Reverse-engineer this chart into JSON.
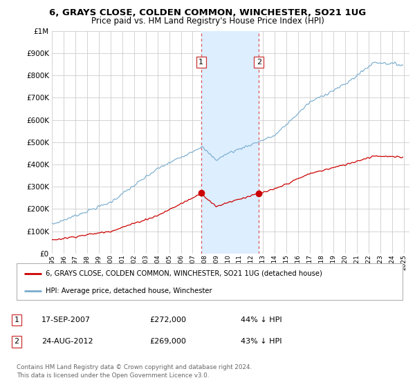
{
  "title": "6, GRAYS CLOSE, COLDEN COMMON, WINCHESTER, SO21 1UG",
  "subtitle": "Price paid vs. HM Land Registry's House Price Index (HPI)",
  "red_label": "6, GRAYS CLOSE, COLDEN COMMON, WINCHESTER, SO21 1UG (detached house)",
  "blue_label": "HPI: Average price, detached house, Winchester",
  "sale1_date": "17-SEP-2007",
  "sale1_price": 272000,
  "sale1_pct": "44% ↓ HPI",
  "sale2_date": "24-AUG-2012",
  "sale2_price": 269000,
  "sale2_pct": "43% ↓ HPI",
  "footer": "Contains HM Land Registry data © Crown copyright and database right 2024.\nThis data is licensed under the Open Government Licence v3.0.",
  "ylim": [
    0,
    1000000
  ],
  "xlim_start": 1995.0,
  "xlim_end": 2025.5,
  "shade_start": 2007.72,
  "shade_end": 2012.65,
  "red_color": "#cc0000",
  "blue_color": "#7aadce",
  "shade_color": "#ddeeff",
  "background_color": "#ffffff",
  "grid_color": "#cccccc",
  "sale1_x": 2007.72,
  "sale2_x": 2012.65
}
